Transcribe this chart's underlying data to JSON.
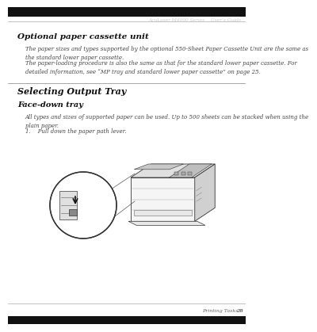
{
  "bg_color": "#ffffff",
  "header_bar_color": "#111111",
  "header_text": "AcuLaser M4000 Series    User’s Guide",
  "header_line_color": "#aaaaaa",
  "footer_line_color": "#aaaaaa",
  "footer_text": "Printing Tasks",
  "footer_page": "28",
  "footer_bar_color": "#111111",
  "section1_title": "Optional paper cassette unit",
  "section1_body1": "The paper sizes and types supported by the optional 550-Sheet Paper Cassette Unit are the same as\nthe standard lower paper cassette.",
  "section1_body2": "The paper-loading procedure is also the same as that for the standard lower paper cassette. For\ndetailed information, see “MP tray and standard lower paper cassette” on page 25.",
  "section2_title": "Selecting Output Tray",
  "section3_title": "Face-down tray",
  "section3_body": "All types and sizes of supported paper can be used. Up to 500 sheets can be stacked when using the\nplain paper.",
  "step1": "1.    Pull down the paper path lever.",
  "text_color": "#444444",
  "title_color": "#111111",
  "line_color": "#999999"
}
